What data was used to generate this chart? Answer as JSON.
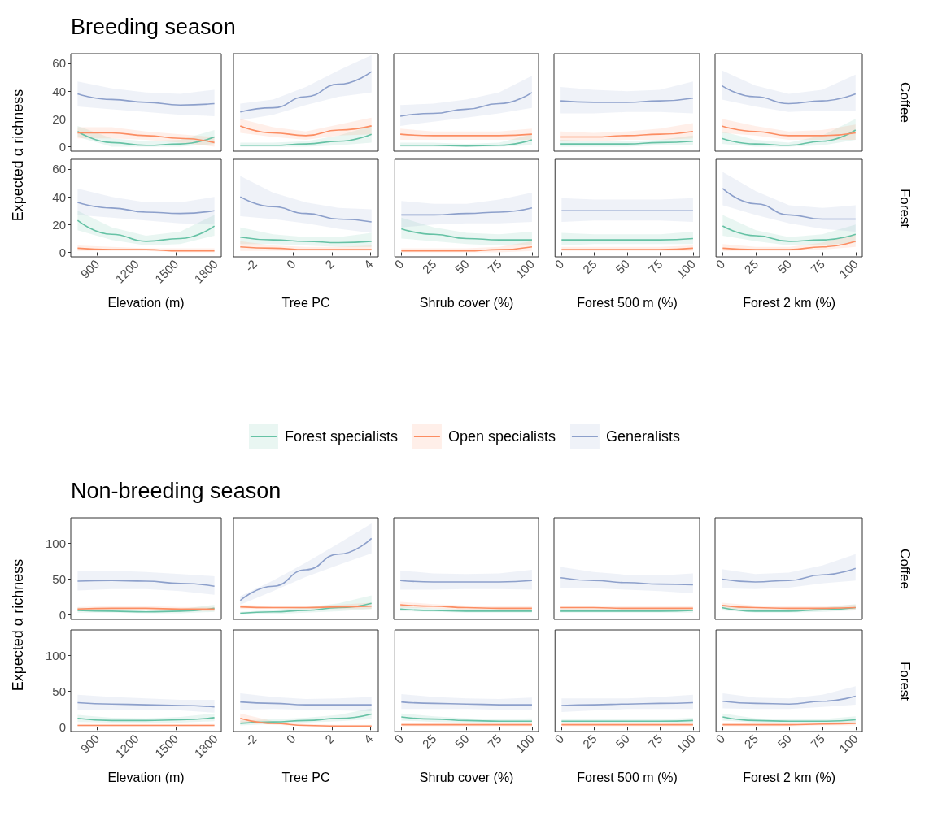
{
  "chart_data": [
    {
      "type": "line",
      "title": "Breeding season",
      "ylabel": "Expected α richness",
      "legend": "bottom",
      "tick_labels": "y",
      "xlim": [
        700,
        1844
      ],
      "xticks": [
        900,
        1200,
        1500,
        1800
      ],
      "ylim": [
        -3.2,
        67
      ],
      "yticks": [
        0,
        20,
        40,
        60
      ],
      "x": [
        752,
        1012,
        1272,
        1532,
        1792
      ],
      "series": [
        {
          "name": "Forest specialists",
          "color": "#66c2a5",
          "values": [
            11,
            3,
            1,
            2,
            7
          ],
          "lower": [
            7,
            0,
            0,
            0,
            2
          ],
          "upper": [
            15,
            6,
            4,
            5,
            12
          ]
        },
        {
          "name": "Open specialists",
          "color": "#fc8d62",
          "values": [
            10,
            10,
            8,
            6,
            3
          ],
          "lower": [
            6,
            6,
            5,
            3,
            0
          ],
          "upper": [
            14,
            14,
            11,
            9,
            7
          ]
        },
        {
          "name": "Generalists",
          "color": "#8da0cb",
          "values": [
            38,
            34,
            32,
            30,
            31
          ],
          "lower": [
            29,
            27,
            25,
            23,
            22
          ],
          "upper": [
            47,
            42,
            39,
            38,
            41
          ]
        }
      ]
    },
    {
      "type": "line",
      "tick_labels": false,
      "xlim": [
        -3.1,
        4.4
      ],
      "xticks": [
        -2,
        0,
        2,
        4
      ],
      "ylim": [
        -3.2,
        67
      ],
      "yticks": [
        0,
        20,
        40,
        60
      ],
      "x": [
        -2.75,
        -1.05,
        0.65,
        2.35,
        4.05
      ],
      "series": [
        {
          "color": "#66c2a5",
          "values": [
            1,
            1,
            2,
            4,
            9
          ],
          "lower": [
            0,
            0,
            0,
            1,
            3
          ],
          "upper": [
            3,
            3,
            4,
            8,
            15
          ]
        },
        {
          "color": "#fc8d62",
          "values": [
            15,
            10,
            8,
            12,
            15
          ],
          "lower": [
            10,
            7,
            5,
            8,
            9
          ],
          "upper": [
            20,
            14,
            11,
            16,
            21
          ]
        },
        {
          "color": "#8da0cb",
          "values": [
            25,
            28,
            36,
            45,
            54
          ],
          "lower": [
            19,
            23,
            30,
            36,
            39
          ],
          "upper": [
            31,
            34,
            43,
            55,
            66
          ]
        }
      ]
    },
    {
      "type": "line",
      "tick_labels": false,
      "xlim": [
        -5,
        105
      ],
      "xticks": [
        0,
        25,
        50,
        75,
        100
      ],
      "ylim": [
        -3.2,
        67
      ],
      "yticks": [
        0,
        20,
        40,
        60
      ],
      "x": [
        0,
        25,
        50,
        75,
        100
      ],
      "series": [
        {
          "color": "#66c2a5",
          "values": [
            1,
            1,
            0.5,
            1,
            5
          ],
          "lower": [
            0,
            0,
            0,
            0,
            1
          ],
          "upper": [
            3,
            3,
            2,
            3,
            9
          ]
        },
        {
          "color": "#fc8d62",
          "values": [
            9,
            8,
            8,
            8,
            9
          ],
          "lower": [
            5,
            5,
            5,
            5,
            5
          ],
          "upper": [
            13,
            11,
            11,
            11,
            13
          ]
        },
        {
          "color": "#8da0cb",
          "values": [
            22,
            24,
            27,
            31,
            39
          ],
          "lower": [
            15,
            18,
            21,
            24,
            28
          ],
          "upper": [
            30,
            31,
            34,
            39,
            51
          ]
        }
      ]
    },
    {
      "type": "line",
      "tick_labels": false,
      "xlim": [
        -5,
        105
      ],
      "xticks": [
        0,
        25,
        50,
        75,
        100
      ],
      "ylim": [
        -3.2,
        67
      ],
      "yticks": [
        0,
        20,
        40,
        60
      ],
      "x": [
        0,
        25,
        50,
        75,
        100
      ],
      "series": [
        {
          "color": "#66c2a5",
          "values": [
            2,
            2,
            2,
            3,
            4
          ],
          "lower": [
            0,
            0,
            0,
            1,
            1
          ],
          "upper": [
            5,
            4,
            4,
            5,
            8
          ]
        },
        {
          "color": "#fc8d62",
          "values": [
            7,
            7,
            8,
            9,
            11
          ],
          "lower": [
            4,
            4,
            5,
            5,
            6
          ],
          "upper": [
            11,
            10,
            11,
            13,
            17
          ]
        },
        {
          "color": "#8da0cb",
          "values": [
            33,
            32,
            32,
            33,
            35
          ],
          "lower": [
            24,
            24,
            25,
            25,
            24
          ],
          "upper": [
            43,
            41,
            40,
            41,
            47
          ]
        }
      ]
    },
    {
      "type": "line",
      "tick_labels": false,
      "annotations": [
        "Coffee"
      ],
      "xlim": [
        -5,
        105
      ],
      "xticks": [
        0,
        25,
        50,
        75,
        100
      ],
      "ylim": [
        -3.2,
        67
      ],
      "yticks": [
        0,
        20,
        40,
        60
      ],
      "x": [
        0,
        25,
        50,
        75,
        100
      ],
      "series": [
        {
          "color": "#66c2a5",
          "values": [
            6,
            2,
            1,
            4,
            12
          ],
          "lower": [
            2,
            0,
            0,
            1,
            5
          ],
          "upper": [
            11,
            5,
            3,
            8,
            20
          ]
        },
        {
          "color": "#fc8d62",
          "values": [
            15,
            11,
            8,
            8,
            10
          ],
          "lower": [
            10,
            8,
            5,
            5,
            5
          ],
          "upper": [
            20,
            15,
            11,
            12,
            16
          ]
        },
        {
          "color": "#8da0cb",
          "values": [
            44,
            36,
            31,
            33,
            38
          ],
          "lower": [
            34,
            29,
            25,
            26,
            26
          ],
          "upper": [
            55,
            44,
            38,
            41,
            52
          ]
        }
      ]
    },
    {
      "type": "line",
      "xlabel": "Elevation (m)",
      "xlim": [
        700,
        1844
      ],
      "xticks": [
        900,
        1200,
        1500,
        1800
      ],
      "ylim": [
        -3.2,
        67
      ],
      "yticks": [
        0,
        20,
        40,
        60
      ],
      "x": [
        752,
        1012,
        1272,
        1532,
        1792
      ],
      "series": [
        {
          "color": "#66c2a5",
          "values": [
            23,
            13,
            8,
            10,
            19
          ],
          "lower": [
            16,
            9,
            5,
            6,
            12
          ],
          "upper": [
            30,
            18,
            12,
            15,
            27
          ]
        },
        {
          "color": "#fc8d62",
          "values": [
            3,
            2,
            2,
            1,
            1
          ],
          "lower": [
            1,
            1,
            1,
            0,
            0
          ],
          "upper": [
            5,
            4,
            3,
            3,
            3
          ]
        },
        {
          "color": "#8da0cb",
          "values": [
            36,
            32,
            29,
            28,
            30
          ],
          "lower": [
            27,
            25,
            23,
            21,
            20
          ],
          "upper": [
            46,
            40,
            36,
            36,
            40
          ]
        }
      ]
    },
    {
      "type": "line",
      "xlabel": "Tree PC",
      "tick_labels": "x",
      "xlim": [
        -3.1,
        4.4
      ],
      "xticks": [
        -2,
        0,
        2,
        4
      ],
      "ylim": [
        -3.2,
        67
      ],
      "yticks": [
        0,
        20,
        40,
        60
      ],
      "x": [
        -2.75,
        -1.05,
        0.65,
        2.35,
        4.05
      ],
      "series": [
        {
          "color": "#66c2a5",
          "values": [
            11,
            9,
            8,
            7,
            8
          ],
          "lower": [
            6,
            6,
            5,
            4,
            4
          ],
          "upper": [
            18,
            13,
            11,
            11,
            14
          ]
        },
        {
          "color": "#fc8d62",
          "values": [
            4,
            3,
            2,
            2,
            2
          ],
          "lower": [
            1,
            1,
            1,
            1,
            1
          ],
          "upper": [
            8,
            5,
            4,
            4,
            5
          ]
        },
        {
          "color": "#8da0cb",
          "values": [
            40,
            33,
            28,
            24,
            22
          ],
          "lower": [
            26,
            24,
            21,
            17,
            14
          ],
          "upper": [
            55,
            43,
            36,
            32,
            31
          ]
        }
      ]
    },
    {
      "type": "line",
      "xlabel": "Shrub cover (%)",
      "tick_labels": "x",
      "xlim": [
        -5,
        105
      ],
      "xticks": [
        0,
        25,
        50,
        75,
        100
      ],
      "ylim": [
        -3.2,
        67
      ],
      "yticks": [
        0,
        20,
        40,
        60
      ],
      "x": [
        0,
        25,
        50,
        75,
        100
      ],
      "series": [
        {
          "color": "#66c2a5",
          "values": [
            17,
            13,
            10,
            9,
            9
          ],
          "lower": [
            10,
            8,
            6,
            5,
            5
          ],
          "upper": [
            25,
            18,
            14,
            13,
            15
          ]
        },
        {
          "color": "#fc8d62",
          "values": [
            1,
            1,
            1,
            2,
            4
          ],
          "lower": [
            0,
            0,
            0,
            0,
            1
          ],
          "upper": [
            3,
            3,
            3,
            4,
            8
          ]
        },
        {
          "color": "#8da0cb",
          "values": [
            27,
            27,
            28,
            29,
            32
          ],
          "lower": [
            18,
            20,
            21,
            21,
            22
          ],
          "upper": [
            37,
            35,
            35,
            38,
            43
          ]
        }
      ]
    },
    {
      "type": "line",
      "xlabel": "Forest 500 m (%)",
      "tick_labels": "x",
      "xlim": [
        -5,
        105
      ],
      "xticks": [
        0,
        25,
        50,
        75,
        100
      ],
      "ylim": [
        -3.2,
        67
      ],
      "yticks": [
        0,
        20,
        40,
        60
      ],
      "x": [
        0,
        25,
        50,
        75,
        100
      ],
      "series": [
        {
          "color": "#66c2a5",
          "values": [
            9,
            9,
            9,
            9,
            10
          ],
          "lower": [
            5,
            6,
            6,
            6,
            6
          ],
          "upper": [
            14,
            13,
            13,
            13,
            15
          ]
        },
        {
          "color": "#fc8d62",
          "values": [
            2,
            2,
            2,
            2,
            3
          ],
          "lower": [
            1,
            1,
            1,
            1,
            1
          ],
          "upper": [
            4,
            4,
            4,
            4,
            5
          ]
        },
        {
          "color": "#8da0cb",
          "values": [
            30,
            30,
            30,
            30,
            30
          ],
          "lower": [
            22,
            23,
            23,
            23,
            22
          ],
          "upper": [
            39,
            38,
            38,
            38,
            39
          ]
        }
      ]
    },
    {
      "type": "line",
      "xlabel": "Forest 2 km (%)",
      "annotations": [
        "Forest"
      ],
      "tick_labels": "x",
      "xlim": [
        -5,
        105
      ],
      "xticks": [
        0,
        25,
        50,
        75,
        100
      ],
      "ylim": [
        -3.2,
        67
      ],
      "yticks": [
        0,
        20,
        40,
        60
      ],
      "x": [
        0,
        25,
        50,
        75,
        100
      ],
      "series": [
        {
          "color": "#66c2a5",
          "values": [
            19,
            12,
            8,
            9,
            13
          ],
          "lower": [
            12,
            8,
            5,
            5,
            7
          ],
          "upper": [
            27,
            16,
            11,
            13,
            20
          ]
        },
        {
          "color": "#fc8d62",
          "values": [
            3,
            2,
            2,
            4,
            8
          ],
          "lower": [
            1,
            1,
            1,
            2,
            4
          ],
          "upper": [
            6,
            4,
            4,
            7,
            13
          ]
        },
        {
          "color": "#8da0cb",
          "values": [
            46,
            35,
            27,
            24,
            24
          ],
          "lower": [
            34,
            27,
            21,
            17,
            15
          ],
          "upper": [
            58,
            44,
            34,
            32,
            34
          ]
        }
      ]
    },
    {
      "type": "line",
      "title": "Non-breeding season",
      "ylabel": "Expected α richness",
      "tick_labels": "y",
      "xlim": [
        700,
        1844
      ],
      "xticks": [
        900,
        1200,
        1500,
        1800
      ],
      "ylim": [
        -6.5,
        136
      ],
      "yticks": [
        0,
        50,
        100
      ],
      "x": [
        752,
        1012,
        1272,
        1532,
        1792
      ],
      "series": [
        {
          "color": "#66c2a5",
          "values": [
            6,
            5,
            4,
            5,
            9
          ],
          "lower": [
            3,
            3,
            2,
            2,
            4
          ],
          "upper": [
            10,
            8,
            7,
            8,
            14
          ]
        },
        {
          "color": "#fc8d62",
          "values": [
            8,
            9,
            9,
            8,
            8
          ],
          "lower": [
            5,
            6,
            6,
            5,
            5
          ],
          "upper": [
            11,
            12,
            12,
            11,
            11
          ]
        },
        {
          "color": "#8da0cb",
          "values": [
            47,
            48,
            47,
            44,
            40
          ],
          "lower": [
            34,
            36,
            36,
            33,
            28
          ],
          "upper": [
            62,
            62,
            60,
            57,
            54
          ]
        }
      ]
    },
    {
      "type": "line",
      "tick_labels": false,
      "xlim": [
        -3.1,
        4.4
      ],
      "xticks": [
        -2,
        0,
        2,
        4
      ],
      "ylim": [
        -6.5,
        136
      ],
      "yticks": [
        0,
        50,
        100
      ],
      "x": [
        -2.75,
        -1.05,
        0.65,
        2.35,
        4.05
      ],
      "series": [
        {
          "color": "#66c2a5",
          "values": [
            2,
            4,
            6,
            10,
            16
          ],
          "lower": [
            0,
            1,
            3,
            5,
            8
          ],
          "upper": [
            4,
            7,
            10,
            16,
            27
          ]
        },
        {
          "color": "#fc8d62",
          "values": [
            11,
            10,
            10,
            11,
            12
          ],
          "lower": [
            8,
            8,
            8,
            8,
            8
          ],
          "upper": [
            14,
            12,
            12,
            14,
            17
          ]
        },
        {
          "color": "#8da0cb",
          "values": [
            20,
            40,
            63,
            85,
            107
          ],
          "lower": [
            14,
            33,
            53,
            70,
            86
          ],
          "upper": [
            26,
            48,
            73,
            100,
            128
          ]
        }
      ]
    },
    {
      "type": "line",
      "tick_labels": false,
      "xlim": [
        -5,
        105
      ],
      "xticks": [
        0,
        25,
        50,
        75,
        100
      ],
      "ylim": [
        -6.5,
        136
      ],
      "yticks": [
        0,
        50,
        100
      ],
      "x": [
        0,
        25,
        50,
        75,
        100
      ],
      "series": [
        {
          "color": "#66c2a5",
          "values": [
            8,
            6,
            5,
            5,
            5
          ],
          "lower": [
            5,
            4,
            3,
            3,
            3
          ],
          "upper": [
            12,
            9,
            8,
            8,
            8
          ]
        },
        {
          "color": "#fc8d62",
          "values": [
            14,
            12,
            10,
            9,
            9
          ],
          "lower": [
            10,
            9,
            7,
            6,
            6
          ],
          "upper": [
            18,
            15,
            13,
            12,
            13
          ]
        },
        {
          "color": "#8da0cb",
          "values": [
            48,
            46,
            46,
            46,
            48
          ],
          "lower": [
            35,
            35,
            36,
            36,
            35
          ],
          "upper": [
            62,
            58,
            57,
            58,
            63
          ]
        }
      ]
    },
    {
      "type": "line",
      "tick_labels": false,
      "xlim": [
        -5,
        105
      ],
      "xticks": [
        0,
        25,
        50,
        75,
        100
      ],
      "ylim": [
        -6.5,
        136
      ],
      "yticks": [
        0,
        50,
        100
      ],
      "x": [
        0,
        25,
        50,
        75,
        100
      ],
      "series": [
        {
          "color": "#66c2a5",
          "values": [
            5,
            5,
            5,
            5,
            6
          ],
          "lower": [
            3,
            3,
            3,
            3,
            3
          ],
          "upper": [
            8,
            8,
            8,
            8,
            9
          ]
        },
        {
          "color": "#fc8d62",
          "values": [
            10,
            10,
            9,
            9,
            9
          ],
          "lower": [
            7,
            7,
            7,
            6,
            6
          ],
          "upper": [
            13,
            13,
            12,
            12,
            12
          ]
        },
        {
          "color": "#8da0cb",
          "values": [
            52,
            48,
            45,
            43,
            42
          ],
          "lower": [
            38,
            37,
            35,
            33,
            30
          ],
          "upper": [
            67,
            60,
            56,
            55,
            58
          ]
        }
      ]
    },
    {
      "type": "line",
      "tick_labels": false,
      "annotations": [
        "Coffee"
      ],
      "xlim": [
        -5,
        105
      ],
      "xticks": [
        0,
        25,
        50,
        75,
        100
      ],
      "ylim": [
        -6.5,
        136
      ],
      "yticks": [
        0,
        50,
        100
      ],
      "x": [
        0,
        25,
        50,
        75,
        100
      ],
      "series": [
        {
          "color": "#66c2a5",
          "values": [
            10,
            5,
            5,
            7,
            10
          ],
          "lower": [
            6,
            3,
            3,
            4,
            6
          ],
          "upper": [
            14,
            8,
            8,
            10,
            15
          ]
        },
        {
          "color": "#fc8d62",
          "values": [
            13,
            10,
            9,
            9,
            10
          ],
          "lower": [
            9,
            7,
            6,
            6,
            6
          ],
          "upper": [
            17,
            13,
            12,
            12,
            14
          ]
        },
        {
          "color": "#8da0cb",
          "values": [
            50,
            46,
            48,
            56,
            65
          ],
          "lower": [
            37,
            36,
            38,
            44,
            48
          ],
          "upper": [
            64,
            57,
            59,
            69,
            85
          ]
        }
      ]
    },
    {
      "type": "line",
      "xlabel": "Elevation (m)",
      "xlim": [
        700,
        1844
      ],
      "xticks": [
        900,
        1200,
        1500,
        1800
      ],
      "ylim": [
        -6.5,
        136
      ],
      "yticks": [
        0,
        50,
        100
      ],
      "x": [
        752,
        1012,
        1272,
        1532,
        1792
      ],
      "series": [
        {
          "color": "#66c2a5",
          "values": [
            12,
            9,
            9,
            10,
            13
          ],
          "lower": [
            7,
            6,
            6,
            6,
            8
          ],
          "upper": [
            17,
            13,
            12,
            14,
            19
          ]
        },
        {
          "color": "#fc8d62",
          "values": [
            2,
            2,
            2,
            2,
            2
          ],
          "lower": [
            1,
            1,
            1,
            1,
            1
          ],
          "upper": [
            4,
            4,
            4,
            4,
            4
          ]
        },
        {
          "color": "#8da0cb",
          "values": [
            34,
            32,
            31,
            30,
            28
          ],
          "lower": [
            24,
            24,
            24,
            23,
            20
          ],
          "upper": [
            45,
            42,
            40,
            38,
            38
          ]
        }
      ]
    },
    {
      "type": "line",
      "xlabel": "Tree PC",
      "tick_labels": "x",
      "xlim": [
        -3.1,
        4.4
      ],
      "xticks": [
        -2,
        0,
        2,
        4
      ],
      "ylim": [
        -6.5,
        136
      ],
      "yticks": [
        0,
        50,
        100
      ],
      "x": [
        -2.75,
        -1.05,
        0.65,
        2.35,
        4.05
      ],
      "series": [
        {
          "color": "#66c2a5",
          "values": [
            5,
            7,
            9,
            12,
            18
          ],
          "lower": [
            2,
            4,
            6,
            8,
            11
          ],
          "upper": [
            9,
            11,
            13,
            17,
            26
          ]
        },
        {
          "color": "#fc8d62",
          "values": [
            12,
            5,
            2,
            1,
            1
          ],
          "lower": [
            6,
            3,
            1,
            0,
            0
          ],
          "upper": [
            19,
            8,
            4,
            3,
            3
          ]
        },
        {
          "color": "#8da0cb",
          "values": [
            35,
            33,
            31,
            31,
            31
          ],
          "lower": [
            24,
            25,
            24,
            23,
            22
          ],
          "upper": [
            47,
            42,
            39,
            40,
            42
          ]
        }
      ]
    },
    {
      "type": "line",
      "xlabel": "Shrub cover (%)",
      "tick_labels": "x",
      "xlim": [
        -5,
        105
      ],
      "xticks": [
        0,
        25,
        50,
        75,
        100
      ],
      "ylim": [
        -6.5,
        136
      ],
      "yticks": [
        0,
        50,
        100
      ],
      "x": [
        0,
        25,
        50,
        75,
        100
      ],
      "series": [
        {
          "color": "#66c2a5",
          "values": [
            14,
            11,
            9,
            8,
            8
          ],
          "lower": [
            9,
            7,
            6,
            5,
            5
          ],
          "upper": [
            19,
            15,
            12,
            11,
            12
          ]
        },
        {
          "color": "#fc8d62",
          "values": [
            3,
            3,
            3,
            3,
            3
          ],
          "lower": [
            1,
            1,
            1,
            1,
            1
          ],
          "upper": [
            5,
            5,
            5,
            5,
            5
          ]
        },
        {
          "color": "#8da0cb",
          "values": [
            35,
            33,
            32,
            31,
            31
          ],
          "lower": [
            25,
            25,
            25,
            24,
            23
          ],
          "upper": [
            46,
            42,
            40,
            39,
            41
          ]
        }
      ]
    },
    {
      "type": "line",
      "xlabel": "Forest 500 m (%)",
      "tick_labels": "x",
      "xlim": [
        -5,
        105
      ],
      "xticks": [
        0,
        25,
        50,
        75,
        100
      ],
      "ylim": [
        -6.5,
        136
      ],
      "yticks": [
        0,
        50,
        100
      ],
      "x": [
        0,
        25,
        50,
        75,
        100
      ],
      "series": [
        {
          "color": "#66c2a5",
          "values": [
            8,
            8,
            8,
            8,
            9
          ],
          "lower": [
            5,
            5,
            5,
            5,
            6
          ],
          "upper": [
            11,
            11,
            11,
            11,
            13
          ]
        },
        {
          "color": "#fc8d62",
          "values": [
            3,
            3,
            3,
            3,
            3
          ],
          "lower": [
            1,
            1,
            1,
            1,
            1
          ],
          "upper": [
            5,
            5,
            5,
            5,
            5
          ]
        },
        {
          "color": "#8da0cb",
          "values": [
            30,
            31,
            32,
            33,
            34
          ],
          "lower": [
            21,
            23,
            25,
            25,
            25
          ],
          "upper": [
            40,
            40,
            40,
            42,
            45
          ]
        }
      ]
    },
    {
      "type": "line",
      "xlabel": "Forest 2 km (%)",
      "annotations": [
        "Forest"
      ],
      "tick_labels": "x",
      "xlim": [
        -5,
        105
      ],
      "xticks": [
        0,
        25,
        50,
        75,
        100
      ],
      "ylim": [
        -6.5,
        136
      ],
      "yticks": [
        0,
        50,
        100
      ],
      "x": [
        0,
        25,
        50,
        75,
        100
      ],
      "series": [
        {
          "color": "#66c2a5",
          "values": [
            14,
            9,
            8,
            8,
            10
          ],
          "lower": [
            9,
            6,
            5,
            5,
            6
          ],
          "upper": [
            19,
            12,
            11,
            11,
            15
          ]
        },
        {
          "color": "#fc8d62",
          "values": [
            3,
            3,
            3,
            4,
            5
          ],
          "lower": [
            1,
            1,
            1,
            2,
            2
          ],
          "upper": [
            5,
            5,
            5,
            6,
            8
          ]
        },
        {
          "color": "#8da0cb",
          "values": [
            36,
            33,
            32,
            36,
            43
          ],
          "lower": [
            26,
            25,
            25,
            28,
            31
          ],
          "upper": [
            47,
            41,
            40,
            45,
            57
          ]
        }
      ]
    }
  ]
}
